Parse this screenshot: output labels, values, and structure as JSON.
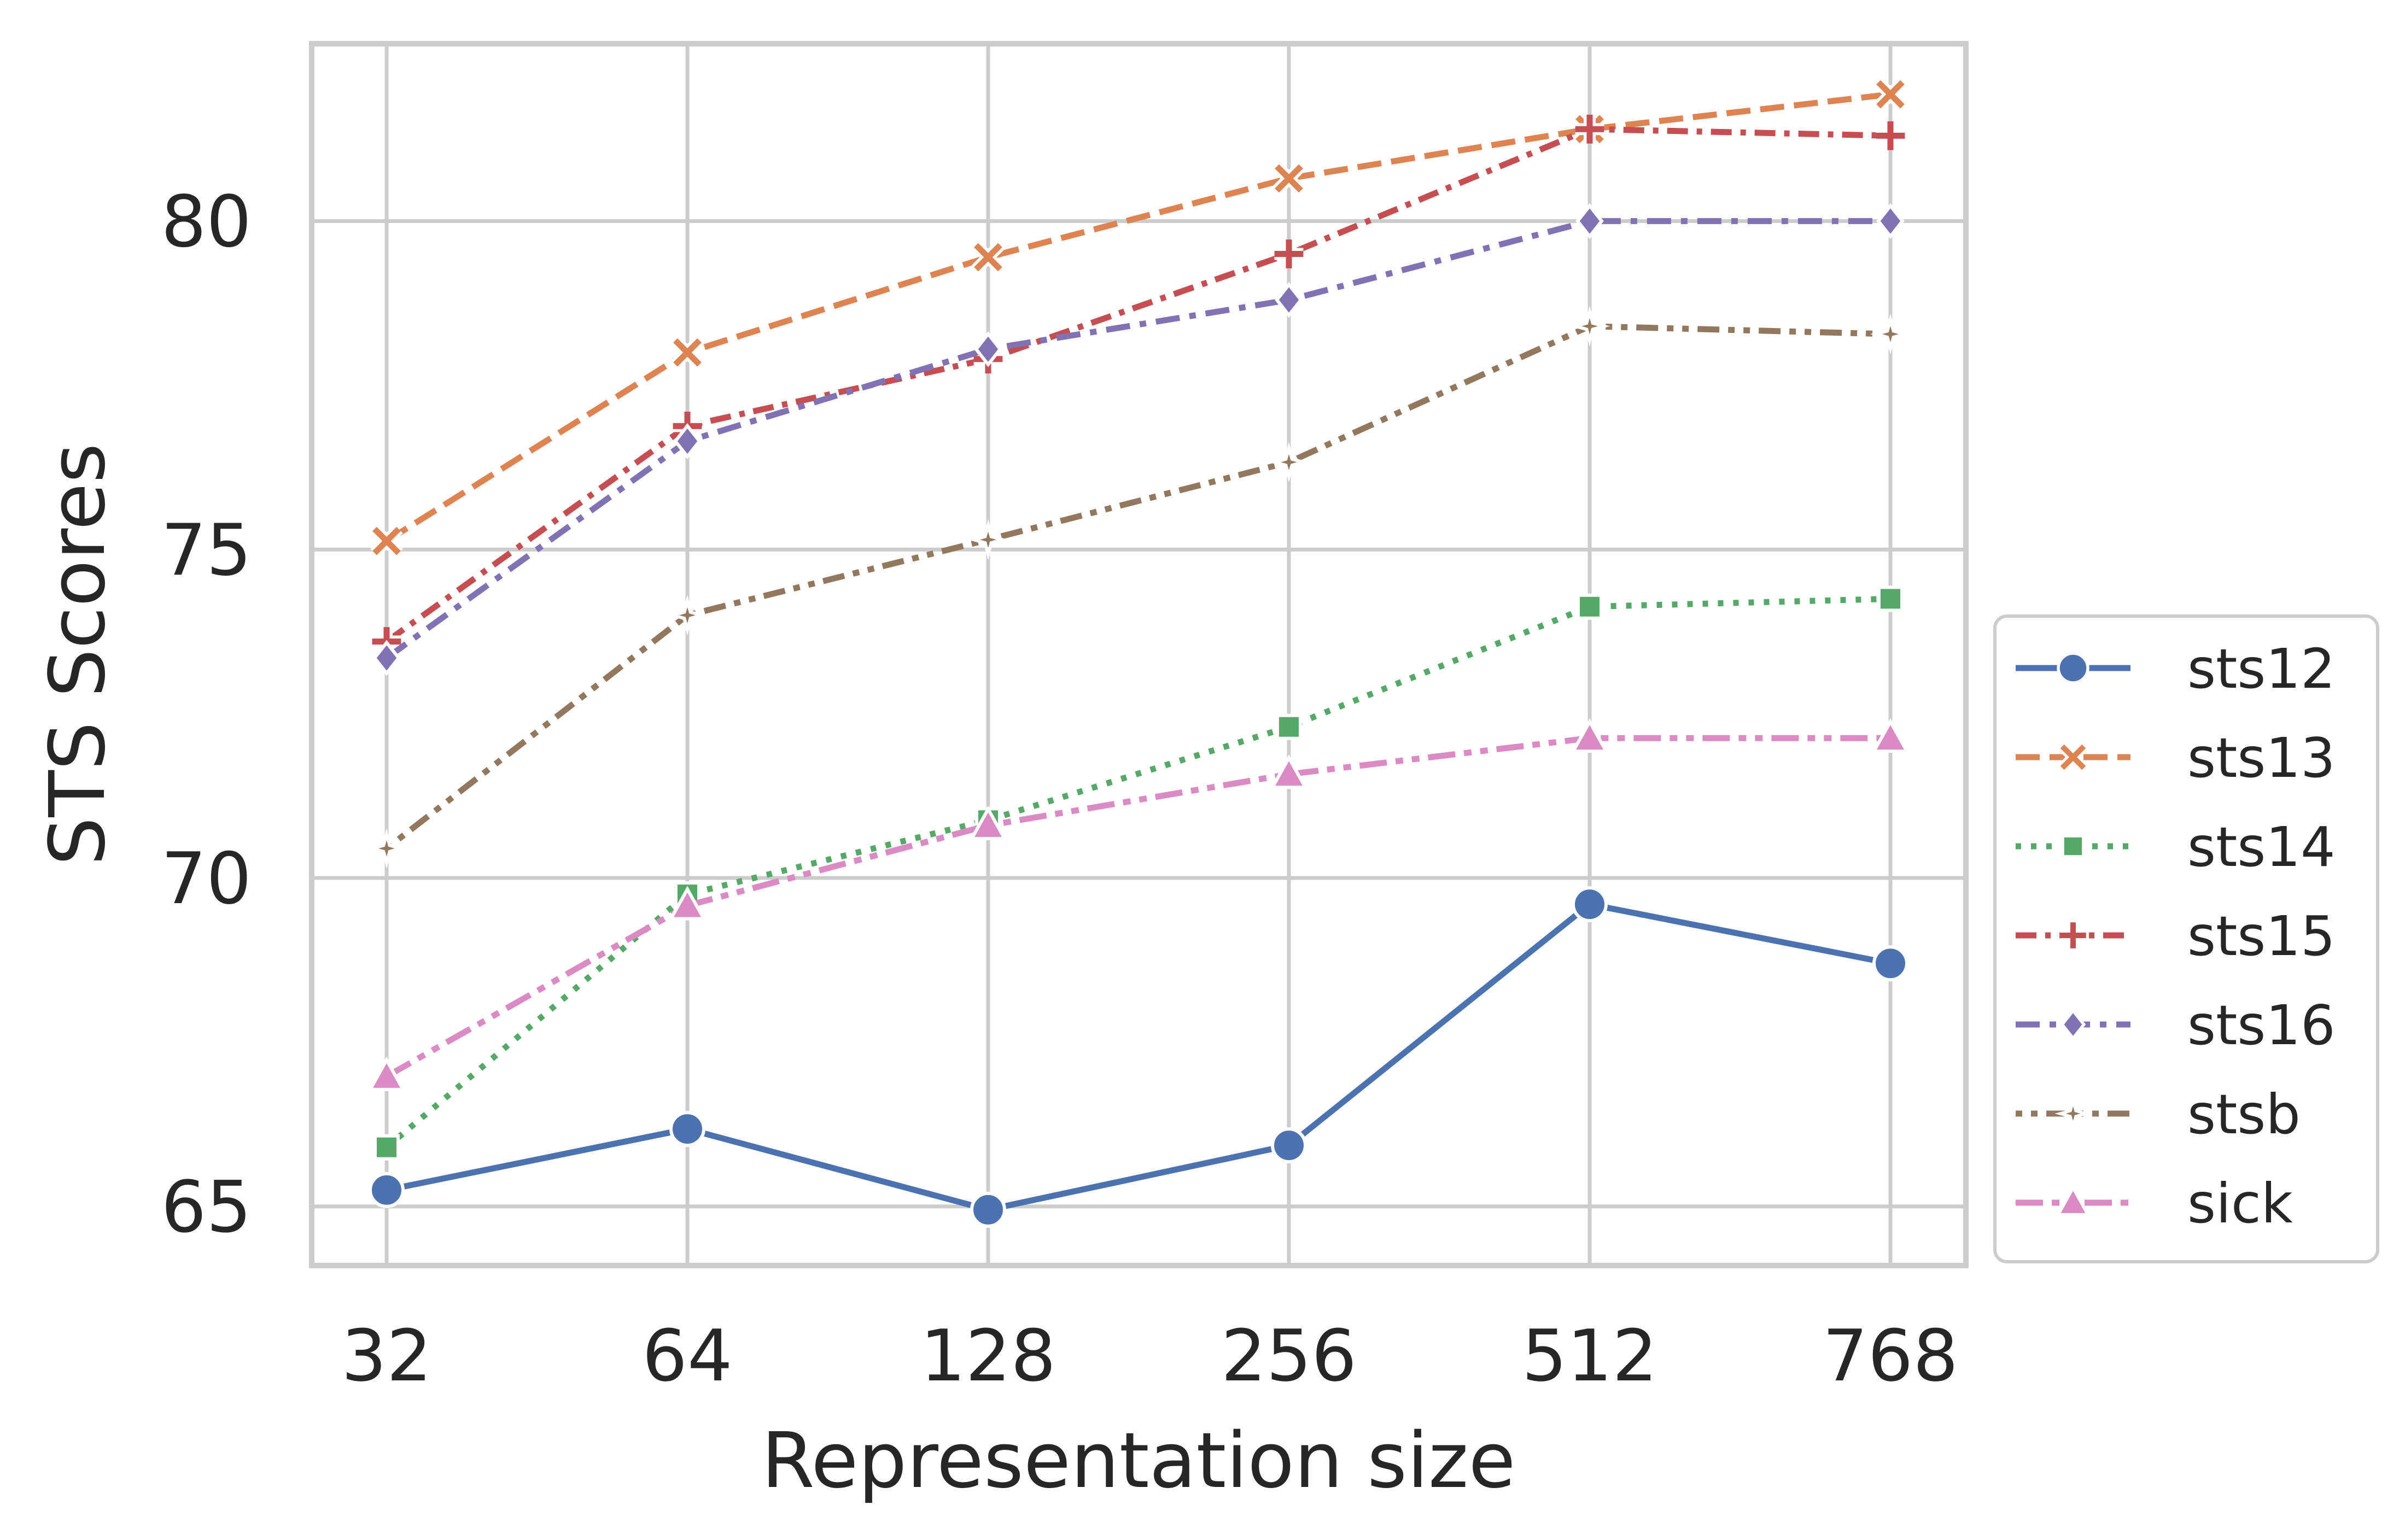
{
  "chart_data": {
    "type": "line",
    "title": "",
    "xlabel": "Representation size",
    "ylabel": "STS Scores",
    "categories": [
      "32",
      "64",
      "128",
      "256",
      "512",
      "768"
    ],
    "ylim": [
      64.1,
      82.7
    ],
    "yticks": [
      65,
      70,
      75,
      80
    ],
    "grid": true,
    "legend_position": "lower-right outside",
    "series": [
      {
        "name": "sts12",
        "color": "#4c72b0",
        "marker": "circle",
        "dash": "solid",
        "values": [
          65.25,
          66.18,
          64.95,
          65.93,
          69.6,
          68.7
        ]
      },
      {
        "name": "sts13",
        "color": "#dd8452",
        "marker": "x",
        "dash": "dashed",
        "values": [
          75.13,
          78.0,
          79.45,
          80.65,
          81.4,
          81.93
        ]
      },
      {
        "name": "sts14",
        "color": "#55a868",
        "marker": "square",
        "dash": "dotted",
        "values": [
          65.9,
          69.75,
          70.88,
          72.3,
          74.13,
          74.25
        ]
      },
      {
        "name": "sts15",
        "color": "#c44e52",
        "marker": "plus",
        "dash": "dashdot",
        "values": [
          73.6,
          76.88,
          77.9,
          79.5,
          81.4,
          81.3
        ]
      },
      {
        "name": "sts16",
        "color": "#8172b3",
        "marker": "diamond",
        "dash": "dashdot2",
        "values": [
          73.35,
          76.65,
          78.05,
          78.8,
          80.0,
          80.0
        ]
      },
      {
        "name": "stsb",
        "color": "#937860",
        "marker": "star",
        "dash": "dashdot3",
        "values": [
          70.45,
          74.0,
          75.15,
          76.33,
          78.4,
          78.28
        ]
      },
      {
        "name": "sick",
        "color": "#da8bc3",
        "marker": "triangle",
        "dash": "dashdot4",
        "values": [
          66.98,
          69.58,
          70.8,
          71.58,
          72.13,
          72.13
        ]
      }
    ]
  }
}
